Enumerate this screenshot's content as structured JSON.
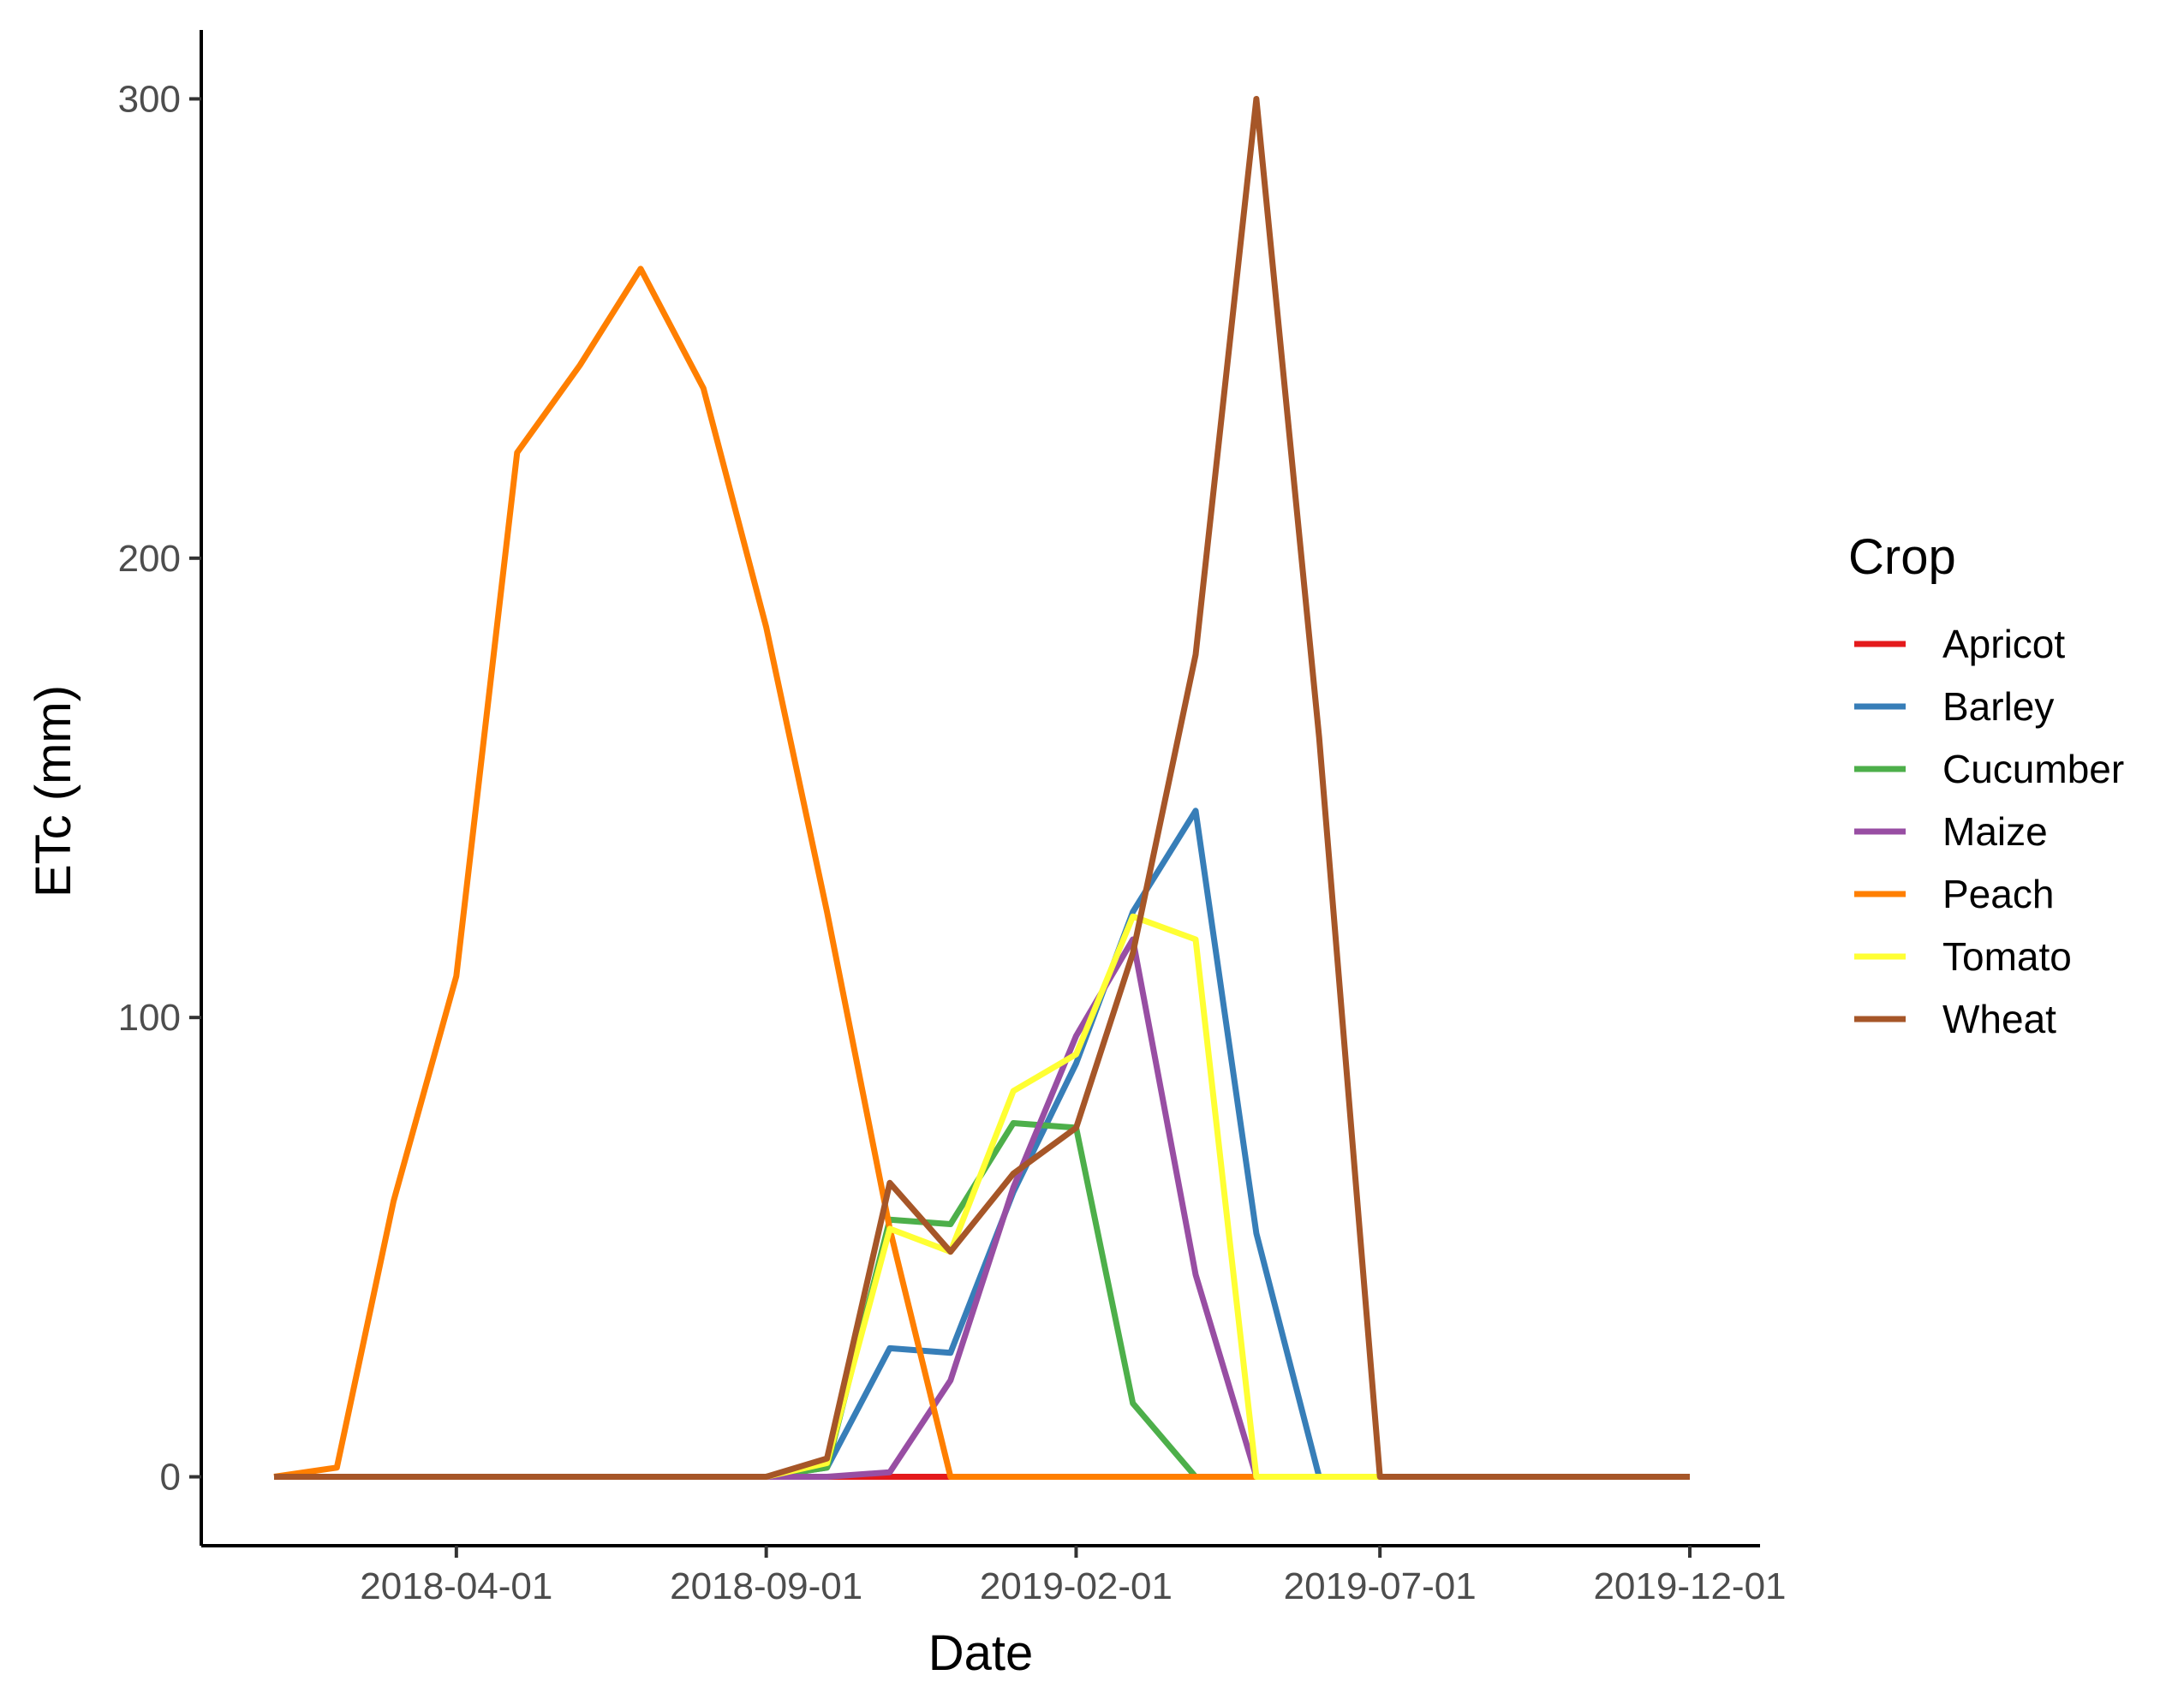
{
  "chart_data": {
    "type": "line",
    "xlabel": "Date",
    "ylabel": "ETc (mm)",
    "x_type": "date",
    "xlim": [
      "2018-01-01",
      "2019-12-01"
    ],
    "ylim": [
      -15,
      315
    ],
    "x_ticks": [
      "2018-04-01",
      "2018-09-01",
      "2019-02-01",
      "2019-07-01",
      "2019-12-01"
    ],
    "y_ticks": [
      0,
      100,
      200,
      300
    ],
    "grid": false,
    "legend": {
      "title": "Crop",
      "position": "right"
    },
    "x": [
      "2018-01-01",
      "2018-02-01",
      "2018-03-01",
      "2018-04-01",
      "2018-05-01",
      "2018-06-01",
      "2018-07-01",
      "2018-08-01",
      "2018-09-01",
      "2018-10-01",
      "2018-11-01",
      "2018-12-01",
      "2019-01-01",
      "2019-02-01",
      "2019-03-01",
      "2019-04-01",
      "2019-05-01",
      "2019-06-01",
      "2019-07-01",
      "2019-08-01",
      "2019-09-01",
      "2019-10-01",
      "2019-11-01",
      "2019-12-01"
    ],
    "series": [
      {
        "name": "Apricot",
        "color": "#E41A1C",
        "values": [
          0,
          0,
          0,
          0,
          0,
          0,
          0,
          0,
          0,
          0,
          0,
          0,
          0,
          0,
          0,
          0,
          0,
          0,
          0,
          0,
          0,
          0,
          0,
          0
        ]
      },
      {
        "name": "Barley",
        "color": "#377EB8",
        "values": [
          0,
          0,
          0,
          0,
          0,
          0,
          0,
          0,
          0,
          2,
          28,
          27,
          62,
          90,
          123,
          145,
          53,
          0,
          0,
          0,
          0,
          0,
          0,
          0
        ]
      },
      {
        "name": "Cucumber",
        "color": "#4DAF4A",
        "values": [
          0,
          0,
          0,
          0,
          0,
          0,
          0,
          0,
          0,
          2,
          56,
          55,
          77,
          76,
          16,
          0,
          0,
          0,
          0,
          0,
          0,
          0,
          0,
          0
        ]
      },
      {
        "name": "Maize",
        "color": "#984EA3",
        "values": [
          0,
          0,
          0,
          0,
          0,
          0,
          0,
          0,
          0,
          0,
          1,
          21,
          63,
          96,
          117,
          44,
          0,
          0,
          0,
          0,
          0,
          0,
          0,
          0
        ]
      },
      {
        "name": "Peach",
        "color": "#FF7F00",
        "values": [
          0,
          2,
          60,
          109,
          223,
          242,
          263,
          237,
          185,
          123,
          54,
          0,
          0,
          0,
          0,
          0,
          0,
          0,
          0,
          0,
          0,
          0,
          0,
          0
        ]
      },
      {
        "name": "Tomato",
        "color": "#FFFF33",
        "values": [
          0,
          0,
          0,
          0,
          0,
          0,
          0,
          0,
          0,
          3,
          54,
          49,
          84,
          92,
          122,
          117,
          0,
          0,
          0,
          0,
          0,
          0,
          0,
          0
        ]
      },
      {
        "name": "Wheat",
        "color": "#A65628",
        "values": [
          0,
          0,
          0,
          0,
          0,
          0,
          0,
          0,
          0,
          4,
          64,
          49,
          66,
          76,
          114,
          179,
          300,
          161,
          0,
          0,
          0,
          0,
          0,
          0
        ]
      }
    ]
  }
}
